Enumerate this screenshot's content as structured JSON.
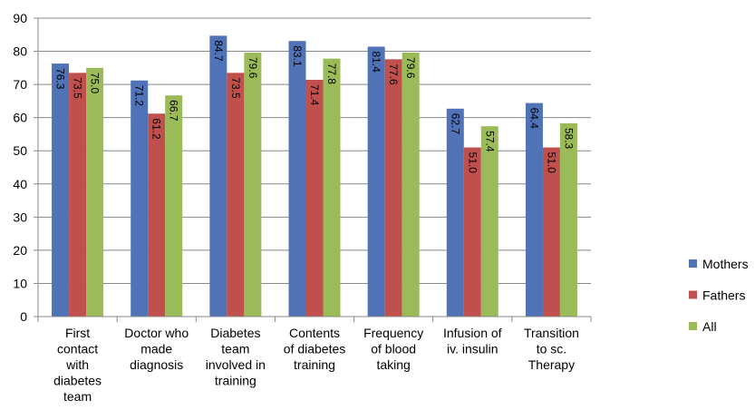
{
  "chart_data": {
    "type": "bar",
    "categories": [
      [
        "First",
        "contact",
        "with",
        "diabetes",
        "team"
      ],
      [
        "Doctor who",
        "made",
        "diagnosis"
      ],
      [
        "Diabetes",
        "team",
        "involved in",
        "training"
      ],
      [
        "Contents",
        "of diabetes",
        "training"
      ],
      [
        "Frequency",
        "of blood",
        "taking"
      ],
      [
        "Infusion of",
        "iv. insulin"
      ],
      [
        "Transition",
        "to sc.",
        "Therapy"
      ]
    ],
    "series": [
      {
        "name": "Mothers",
        "color": "#4f73b6",
        "values": [
          76.3,
          71.2,
          84.7,
          83.1,
          81.4,
          62.7,
          64.4
        ],
        "value_labels": [
          "76.3",
          "71.2",
          "84.7",
          "83.1",
          "81.4",
          "62.7",
          "64.4"
        ]
      },
      {
        "name": "Fathers",
        "color": "#c0504d",
        "values": [
          73.5,
          61.2,
          73.5,
          71.4,
          77.6,
          51.0,
          51.0
        ],
        "value_labels": [
          "73.5",
          "61.2",
          "73.5",
          "71.4",
          "77.6",
          "51.0",
          "51.0"
        ]
      },
      {
        "name": "All",
        "color": "#9bbb59",
        "values": [
          75.0,
          66.7,
          79.6,
          77.8,
          79.6,
          57.4,
          58.3
        ],
        "value_labels": [
          "75.0",
          "66.7",
          "79.6",
          "77.8",
          "79.6",
          "57.4",
          "58.3"
        ]
      }
    ],
    "ylim": [
      0,
      90
    ],
    "yticks": [
      0,
      10,
      20,
      30,
      40,
      50,
      60,
      70,
      80,
      90
    ],
    "grid": true,
    "legend": "right"
  }
}
